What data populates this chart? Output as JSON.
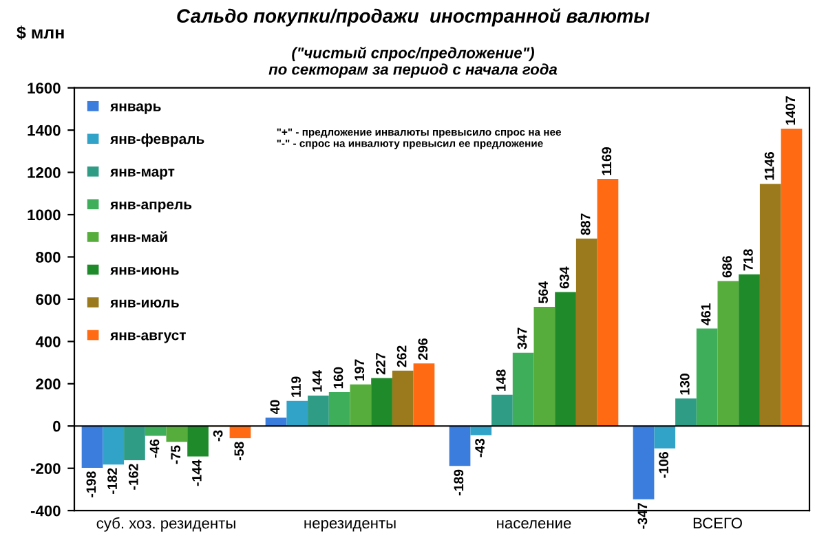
{
  "chart_data": {
    "type": "bar",
    "title": "Сальдо покупки/продажи  иностранной валюты",
    "subtitle": "(\"чистый спрос/предложение\")\nпо секторам за период с начала года",
    "ylabel": "$ млн",
    "categories": [
      "суб. хоз. резиденты",
      "нерезиденты",
      "население",
      "ВСЕГО"
    ],
    "series": [
      {
        "name": "январь",
        "color": "#3b7ddd",
        "values": [
          -198,
          40,
          -189,
          -347
        ]
      },
      {
        "name": "янв-февраль",
        "color": "#31a2c8",
        "values": [
          -182,
          119,
          -43,
          -106
        ]
      },
      {
        "name": "янв-март",
        "color": "#2f9c86",
        "values": [
          -162,
          144,
          148,
          130
        ]
      },
      {
        "name": "янв-апрель",
        "color": "#3fae5a",
        "values": [
          -46,
          160,
          347,
          461
        ]
      },
      {
        "name": "янв-май",
        "color": "#56ad3c",
        "values": [
          -75,
          197,
          564,
          686
        ]
      },
      {
        "name": "янв-июнь",
        "color": "#1f8a2a",
        "values": [
          -144,
          227,
          634,
          718
        ]
      },
      {
        "name": "янв-июль",
        "color": "#9a7a1c",
        "values": [
          -3,
          262,
          887,
          1146
        ]
      },
      {
        "name": "янв-август",
        "color": "#ff6a13",
        "values": [
          -58,
          296,
          1169,
          1407
        ]
      }
    ],
    "ylim": [
      -400,
      1600
    ],
    "yticks": [
      -400,
      -200,
      0,
      200,
      400,
      600,
      800,
      1000,
      1200,
      1400,
      1600
    ],
    "annotations": [
      "\"+\" - предложение инвалюты превысило спрос на нее\n\"-\" - спрос на инвалюту превысил ее предложение"
    ],
    "ref_lines": [
      {
        "axis": "y",
        "value": 0,
        "color": "#000000"
      }
    ],
    "data_labels": true,
    "legend": "top left",
    "grid": false
  }
}
